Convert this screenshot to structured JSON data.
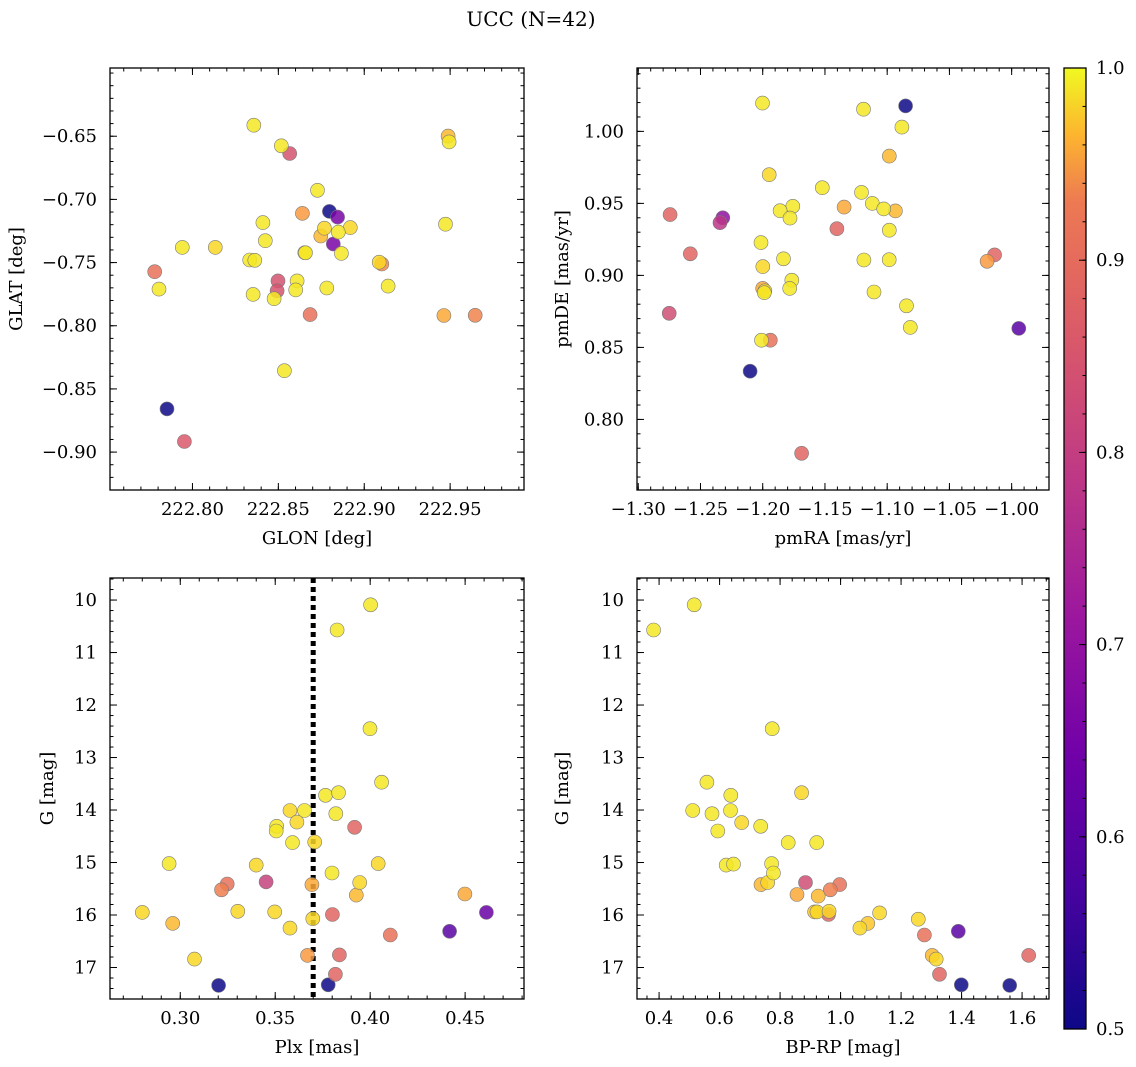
{
  "figure": {
    "suptitle": "UCC (N=42)",
    "colormap": "plasma",
    "colorbar": {
      "min": 0.5,
      "max": 1.0,
      "ticks": [
        0.5,
        0.6,
        0.7,
        0.8,
        0.9,
        1.0
      ],
      "tick_labels": [
        "0.5",
        "0.6",
        "0.7",
        "0.8",
        "0.9",
        "1.0"
      ]
    },
    "marker": {
      "edge_color": "#7a7a7a",
      "alpha": 0.85
    }
  },
  "chart_data": [
    {
      "id": "sky",
      "type": "scatter",
      "xlabel": "GLON [deg]",
      "ylabel": "GLAT [deg]",
      "xlim": [
        222.752,
        222.993
      ],
      "ylim": [
        -0.93,
        -0.596
      ],
      "y_inverted": false,
      "xticks": [
        222.8,
        222.85,
        222.9,
        222.95
      ],
      "xtick_labels": [
        "222.80",
        "222.85",
        "222.90",
        "222.95"
      ],
      "yticks": [
        -0.65,
        -0.7,
        -0.75,
        -0.8,
        -0.85,
        -0.9
      ],
      "ytick_labels": [
        "−0.65",
        "−0.70",
        "−0.75",
        "−0.80",
        "−0.85",
        "−0.90"
      ],
      "points": [
        {
          "x": 222.8357,
          "y": -0.6413,
          "p": 0.98
        },
        {
          "x": 222.8517,
          "y": -0.6576,
          "p": 0.98
        },
        {
          "x": 222.8566,
          "y": -0.6637,
          "p": 0.77
        },
        {
          "x": 222.9488,
          "y": -0.6499,
          "p": 0.92
        },
        {
          "x": 222.9494,
          "y": -0.6545,
          "p": 0.98
        },
        {
          "x": 222.8728,
          "y": -0.6928,
          "p": 0.98
        },
        {
          "x": 222.8797,
          "y": -0.7095,
          "p": 0.5
        },
        {
          "x": 222.864,
          "y": -0.7111,
          "p": 0.88
        },
        {
          "x": 222.8845,
          "y": -0.714,
          "p": 0.62
        },
        {
          "x": 222.841,
          "y": -0.7184,
          "p": 0.98
        },
        {
          "x": 222.8768,
          "y": -0.7228,
          "p": 0.96
        },
        {
          "x": 222.8919,
          "y": -0.7223,
          "p": 0.96
        },
        {
          "x": 222.8849,
          "y": -0.7259,
          "p": 0.98
        },
        {
          "x": 222.9473,
          "y": -0.7196,
          "p": 0.98
        },
        {
          "x": 222.8747,
          "y": -0.729,
          "p": 0.92
        },
        {
          "x": 222.8424,
          "y": -0.7327,
          "p": 0.98
        },
        {
          "x": 222.882,
          "y": -0.7353,
          "p": 0.62
        },
        {
          "x": 222.7941,
          "y": -0.738,
          "p": 0.98
        },
        {
          "x": 222.8133,
          "y": -0.738,
          "p": 0.96
        },
        {
          "x": 222.8654,
          "y": -0.7422,
          "p": 0.96
        },
        {
          "x": 222.8658,
          "y": -0.7423,
          "p": 0.98
        },
        {
          "x": 222.8867,
          "y": -0.7427,
          "p": 0.98
        },
        {
          "x": 222.8333,
          "y": -0.748,
          "p": 0.98
        },
        {
          "x": 222.8363,
          "y": -0.7482,
          "p": 0.98
        },
        {
          "x": 222.9087,
          "y": -0.7497,
          "p": 0.96
        },
        {
          "x": 222.9102,
          "y": -0.7511,
          "p": 0.86
        },
        {
          "x": 222.778,
          "y": -0.7572,
          "p": 0.82
        },
        {
          "x": 222.8498,
          "y": -0.7645,
          "p": 0.77
        },
        {
          "x": 222.8609,
          "y": -0.7645,
          "p": 0.98
        },
        {
          "x": 222.9139,
          "y": -0.7686,
          "p": 0.98
        },
        {
          "x": 222.8601,
          "y": -0.7716,
          "p": 0.98
        },
        {
          "x": 222.8493,
          "y": -0.7723,
          "p": 0.77
        },
        {
          "x": 222.7805,
          "y": -0.771,
          "p": 0.98
        },
        {
          "x": 222.8782,
          "y": -0.7701,
          "p": 0.98
        },
        {
          "x": 222.8353,
          "y": -0.7752,
          "p": 0.98
        },
        {
          "x": 222.8475,
          "y": -0.7786,
          "p": 0.98
        },
        {
          "x": 222.8685,
          "y": -0.7912,
          "p": 0.82
        },
        {
          "x": 222.9464,
          "y": -0.7919,
          "p": 0.9
        },
        {
          "x": 222.9646,
          "y": -0.7917,
          "p": 0.85
        },
        {
          "x": 222.8535,
          "y": -0.8356,
          "p": 0.98
        },
        {
          "x": 222.7852,
          "y": -0.8658,
          "p": 0.5
        },
        {
          "x": 222.7953,
          "y": -0.8916,
          "p": 0.78
        }
      ]
    },
    {
      "id": "pm",
      "type": "scatter",
      "xlabel": "pmRA [mas/yr]",
      "ylabel": "pmDE [mas/yr]",
      "xlim": [
        -1.301,
        -0.97
      ],
      "ylim": [
        0.751,
        1.044
      ],
      "y_inverted": false,
      "xticks": [
        -1.3,
        -1.25,
        -1.2,
        -1.15,
        -1.1,
        -1.05,
        -1.0
      ],
      "xtick_labels": [
        "−1.30",
        "−1.25",
        "−1.20",
        "−1.15",
        "−1.10",
        "−1.05",
        "−1.00"
      ],
      "yticks": [
        0.8,
        0.85,
        0.9,
        0.95,
        1.0
      ],
      "ytick_labels": [
        "0.80",
        "0.85",
        "0.90",
        "0.95",
        "1.00"
      ],
      "points": [
        {
          "x": -1.2002,
          "y": 1.0196,
          "p": 0.98
        },
        {
          "x": -1.119,
          "y": 1.0154,
          "p": 0.98
        },
        {
          "x": -1.0852,
          "y": 1.0177,
          "p": 0.5
        },
        {
          "x": -1.0882,
          "y": 1.003,
          "p": 0.98
        },
        {
          "x": -1.0983,
          "y": 0.9828,
          "p": 0.92
        },
        {
          "x": -1.1948,
          "y": 0.9699,
          "p": 0.96
        },
        {
          "x": -1.1521,
          "y": 0.9609,
          "p": 0.98
        },
        {
          "x": -1.1206,
          "y": 0.9576,
          "p": 0.98
        },
        {
          "x": -1.1758,
          "y": 0.948,
          "p": 0.98
        },
        {
          "x": -1.1346,
          "y": 0.9474,
          "p": 0.9
        },
        {
          "x": -1.112,
          "y": 0.95,
          "p": 0.98
        },
        {
          "x": -1.1028,
          "y": 0.9462,
          "p": 0.98
        },
        {
          "x": -1.0934,
          "y": 0.9448,
          "p": 0.92
        },
        {
          "x": -1.186,
          "y": 0.9449,
          "p": 0.98
        },
        {
          "x": -1.1781,
          "y": 0.9398,
          "p": 0.98
        },
        {
          "x": -1.2744,
          "y": 0.9422,
          "p": 0.8
        },
        {
          "x": -1.2321,
          "y": 0.94,
          "p": 0.65
        },
        {
          "x": -1.2343,
          "y": 0.9366,
          "p": 0.72
        },
        {
          "x": -1.1404,
          "y": 0.9324,
          "p": 0.8
        },
        {
          "x": -1.0983,
          "y": 0.9314,
          "p": 0.98
        },
        {
          "x": -1.2014,
          "y": 0.9228,
          "p": 0.98
        },
        {
          "x": -1.2582,
          "y": 0.915,
          "p": 0.8
        },
        {
          "x": -1.0137,
          "y": 0.9142,
          "p": 0.8
        },
        {
          "x": -1.0197,
          "y": 0.9098,
          "p": 0.88
        },
        {
          "x": -1.1833,
          "y": 0.9115,
          "p": 0.98
        },
        {
          "x": -1.1187,
          "y": 0.9107,
          "p": 0.98
        },
        {
          "x": -1.0984,
          "y": 0.9109,
          "p": 0.98
        },
        {
          "x": -1.1999,
          "y": 0.9061,
          "p": 0.96
        },
        {
          "x": -1.1766,
          "y": 0.8967,
          "p": 0.98
        },
        {
          "x": -1.2,
          "y": 0.891,
          "p": 0.9
        },
        {
          "x": -1.1983,
          "y": 0.8893,
          "p": 0.96
        },
        {
          "x": -1.1987,
          "y": 0.888,
          "p": 0.98
        },
        {
          "x": -1.1783,
          "y": 0.891,
          "p": 0.98
        },
        {
          "x": -1.1106,
          "y": 0.8885,
          "p": 0.98
        },
        {
          "x": -1.0845,
          "y": 0.8789,
          "p": 0.98
        },
        {
          "x": -1.2751,
          "y": 0.8737,
          "p": 0.76
        },
        {
          "x": -1.0814,
          "y": 0.8639,
          "p": 0.98
        },
        {
          "x": -0.9943,
          "y": 0.8632,
          "p": 0.58
        },
        {
          "x": -1.201,
          "y": 0.855,
          "p": 0.98
        },
        {
          "x": -1.1939,
          "y": 0.855,
          "p": 0.82
        },
        {
          "x": -1.2101,
          "y": 0.8335,
          "p": 0.5
        },
        {
          "x": -1.1688,
          "y": 0.7765,
          "p": 0.8
        }
      ]
    },
    {
      "id": "plx",
      "type": "scatter",
      "xlabel": "Plx [mas]",
      "ylabel": "G [mag]",
      "xlim": [
        0.263,
        0.481
      ],
      "ylim": [
        17.6,
        9.58
      ],
      "y_inverted": true,
      "vline": {
        "x": 0.37,
        "style": "dotted",
        "color": "#000000"
      },
      "xticks": [
        0.3,
        0.35,
        0.4,
        0.45
      ],
      "xtick_labels": [
        "0.30",
        "0.35",
        "0.40",
        "0.45"
      ],
      "yticks": [
        10,
        11,
        12,
        13,
        14,
        15,
        16,
        17
      ],
      "ytick_labels": [
        "10",
        "11",
        "12",
        "13",
        "14",
        "15",
        "16",
        "17"
      ],
      "points": [
        {
          "x": 0.4002,
          "y": 10.09,
          "p": 0.98
        },
        {
          "x": 0.3826,
          "y": 10.57,
          "p": 0.98
        },
        {
          "x": 0.3999,
          "y": 12.45,
          "p": 0.98
        },
        {
          "x": 0.406,
          "y": 13.47,
          "p": 0.98
        },
        {
          "x": 0.3765,
          "y": 13.72,
          "p": 0.98
        },
        {
          "x": 0.3833,
          "y": 13.67,
          "p": 0.98
        },
        {
          "x": 0.3578,
          "y": 14.01,
          "p": 0.96
        },
        {
          "x": 0.3654,
          "y": 14.01,
          "p": 0.98
        },
        {
          "x": 0.3819,
          "y": 14.07,
          "p": 0.98
        },
        {
          "x": 0.3614,
          "y": 14.23,
          "p": 0.96
        },
        {
          "x": 0.3508,
          "y": 14.31,
          "p": 0.98
        },
        {
          "x": 0.3918,
          "y": 14.33,
          "p": 0.8
        },
        {
          "x": 0.3505,
          "y": 14.4,
          "p": 0.98
        },
        {
          "x": 0.3591,
          "y": 14.62,
          "p": 0.98
        },
        {
          "x": 0.3708,
          "y": 14.61,
          "p": 0.96
        },
        {
          "x": 0.2941,
          "y": 15.02,
          "p": 0.98
        },
        {
          "x": 0.34,
          "y": 15.05,
          "p": 0.96
        },
        {
          "x": 0.4042,
          "y": 15.02,
          "p": 0.96
        },
        {
          "x": 0.3799,
          "y": 15.2,
          "p": 0.98
        },
        {
          "x": 0.3247,
          "y": 15.41,
          "p": 0.82
        },
        {
          "x": 0.3452,
          "y": 15.37,
          "p": 0.74
        },
        {
          "x": 0.3693,
          "y": 15.42,
          "p": 0.9
        },
        {
          "x": 0.3945,
          "y": 15.38,
          "p": 0.96
        },
        {
          "x": 0.3217,
          "y": 15.52,
          "p": 0.84
        },
        {
          "x": 0.3927,
          "y": 15.62,
          "p": 0.92
        },
        {
          "x": 0.4499,
          "y": 15.6,
          "p": 0.9
        },
        {
          "x": 0.28,
          "y": 15.95,
          "p": 0.96
        },
        {
          "x": 0.3303,
          "y": 15.93,
          "p": 0.96
        },
        {
          "x": 0.3497,
          "y": 15.94,
          "p": 0.96
        },
        {
          "x": 0.3801,
          "y": 15.99,
          "p": 0.8
        },
        {
          "x": 0.4612,
          "y": 15.95,
          "p": 0.6
        },
        {
          "x": 0.3698,
          "y": 16.07,
          "p": 0.96
        },
        {
          "x": 0.296,
          "y": 16.16,
          "p": 0.92
        },
        {
          "x": 0.3578,
          "y": 16.25,
          "p": 0.96
        },
        {
          "x": 0.4418,
          "y": 16.31,
          "p": 0.58
        },
        {
          "x": 0.4106,
          "y": 16.38,
          "p": 0.82
        },
        {
          "x": 0.367,
          "y": 16.77,
          "p": 0.88
        },
        {
          "x": 0.3838,
          "y": 16.76,
          "p": 0.8
        },
        {
          "x": 0.3075,
          "y": 16.84,
          "p": 0.96
        },
        {
          "x": 0.3817,
          "y": 17.13,
          "p": 0.8
        },
        {
          "x": 0.3202,
          "y": 17.34,
          "p": 0.5
        },
        {
          "x": 0.3779,
          "y": 17.33,
          "p": 0.5
        }
      ]
    },
    {
      "id": "cmd",
      "type": "scatter",
      "xlabel": "BP-RP [mag]",
      "ylabel": "G [mag]",
      "xlim": [
        0.327,
        1.689
      ],
      "ylim": [
        17.6,
        9.58
      ],
      "y_inverted": true,
      "xticks": [
        0.4,
        0.6,
        0.8,
        1.0,
        1.2,
        1.4,
        1.6
      ],
      "xtick_labels": [
        "0.4",
        "0.6",
        "0.8",
        "1.0",
        "1.2",
        "1.4",
        "1.6"
      ],
      "yticks": [
        10,
        11,
        12,
        13,
        14,
        15,
        16,
        17
      ],
      "ytick_labels": [
        "10",
        "11",
        "12",
        "13",
        "14",
        "15",
        "16",
        "17"
      ],
      "points": [
        {
          "x": 0.382,
          "y": 10.57,
          "p": 0.98
        },
        {
          "x": 0.516,
          "y": 10.09,
          "p": 0.98
        },
        {
          "x": 0.774,
          "y": 12.45,
          "p": 0.98
        },
        {
          "x": 0.558,
          "y": 13.47,
          "p": 0.98
        },
        {
          "x": 0.637,
          "y": 13.72,
          "p": 0.98
        },
        {
          "x": 0.871,
          "y": 13.67,
          "p": 0.96
        },
        {
          "x": 0.511,
          "y": 14.01,
          "p": 0.98
        },
        {
          "x": 0.575,
          "y": 14.07,
          "p": 0.98
        },
        {
          "x": 0.636,
          "y": 14.01,
          "p": 0.98
        },
        {
          "x": 0.673,
          "y": 14.24,
          "p": 0.96
        },
        {
          "x": 0.736,
          "y": 14.31,
          "p": 0.98
        },
        {
          "x": 0.594,
          "y": 14.4,
          "p": 0.98
        },
        {
          "x": 0.827,
          "y": 14.62,
          "p": 0.98
        },
        {
          "x": 0.921,
          "y": 14.62,
          "p": 0.98
        },
        {
          "x": 0.622,
          "y": 15.05,
          "p": 0.98
        },
        {
          "x": 0.646,
          "y": 15.03,
          "p": 0.98
        },
        {
          "x": 0.772,
          "y": 15.02,
          "p": 0.98
        },
        {
          "x": 0.778,
          "y": 15.2,
          "p": 0.98
        },
        {
          "x": 0.737,
          "y": 15.42,
          "p": 0.92
        },
        {
          "x": 0.759,
          "y": 15.38,
          "p": 0.96
        },
        {
          "x": 0.884,
          "y": 15.38,
          "p": 0.76
        },
        {
          "x": 0.997,
          "y": 15.42,
          "p": 0.82
        },
        {
          "x": 0.966,
          "y": 15.52,
          "p": 0.84
        },
        {
          "x": 0.856,
          "y": 15.61,
          "p": 0.9
        },
        {
          "x": 0.926,
          "y": 15.64,
          "p": 0.92
        },
        {
          "x": 0.914,
          "y": 15.94,
          "p": 0.94
        },
        {
          "x": 0.922,
          "y": 15.94,
          "p": 0.96
        },
        {
          "x": 0.96,
          "y": 15.99,
          "p": 0.8
        },
        {
          "x": 0.962,
          "y": 15.93,
          "p": 0.96
        },
        {
          "x": 1.129,
          "y": 15.96,
          "p": 0.96
        },
        {
          "x": 1.257,
          "y": 16.08,
          "p": 0.96
        },
        {
          "x": 1.09,
          "y": 16.16,
          "p": 0.94
        },
        {
          "x": 1.064,
          "y": 16.25,
          "p": 0.96
        },
        {
          "x": 1.277,
          "y": 16.38,
          "p": 0.82
        },
        {
          "x": 1.389,
          "y": 16.31,
          "p": 0.58
        },
        {
          "x": 1.303,
          "y": 16.77,
          "p": 0.92
        },
        {
          "x": 1.316,
          "y": 16.84,
          "p": 0.96
        },
        {
          "x": 1.622,
          "y": 16.77,
          "p": 0.8
        },
        {
          "x": 1.327,
          "y": 17.13,
          "p": 0.8
        },
        {
          "x": 1.399,
          "y": 17.33,
          "p": 0.5
        },
        {
          "x": 1.559,
          "y": 17.34,
          "p": 0.5
        }
      ]
    }
  ]
}
